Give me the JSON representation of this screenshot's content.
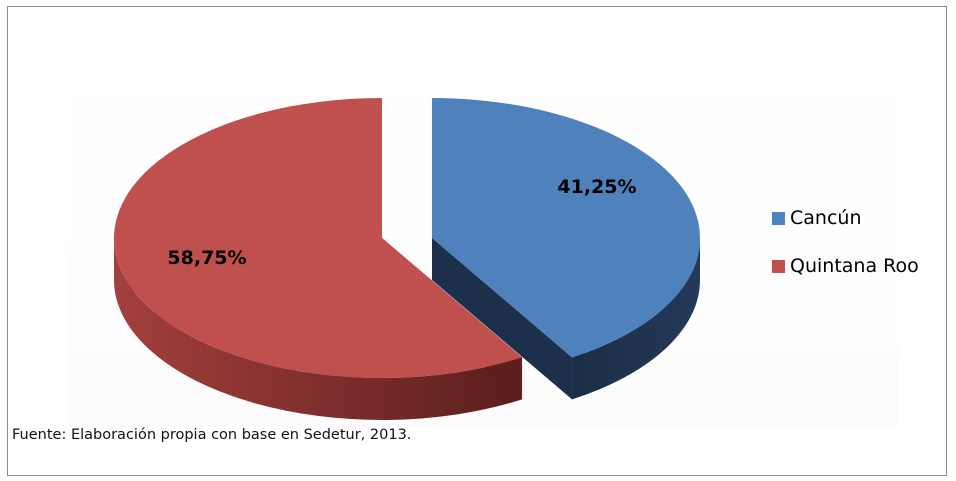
{
  "chart_data": {
    "type": "pie",
    "variant": "3d-exploded",
    "title": "",
    "slices": [
      {
        "label": "Cancún",
        "value": 41.25,
        "display": "41,25%",
        "color": "#4F81BD",
        "side_color": "#1F3350"
      },
      {
        "label": "Quintana Roo",
        "value": 58.75,
        "display": "58,75%",
        "color": "#C0504D",
        "side_color": "#6E2624"
      }
    ],
    "legend_position": "right"
  },
  "source_text": "Fuente: Elaboración propia con base en Sedetur, 2013."
}
